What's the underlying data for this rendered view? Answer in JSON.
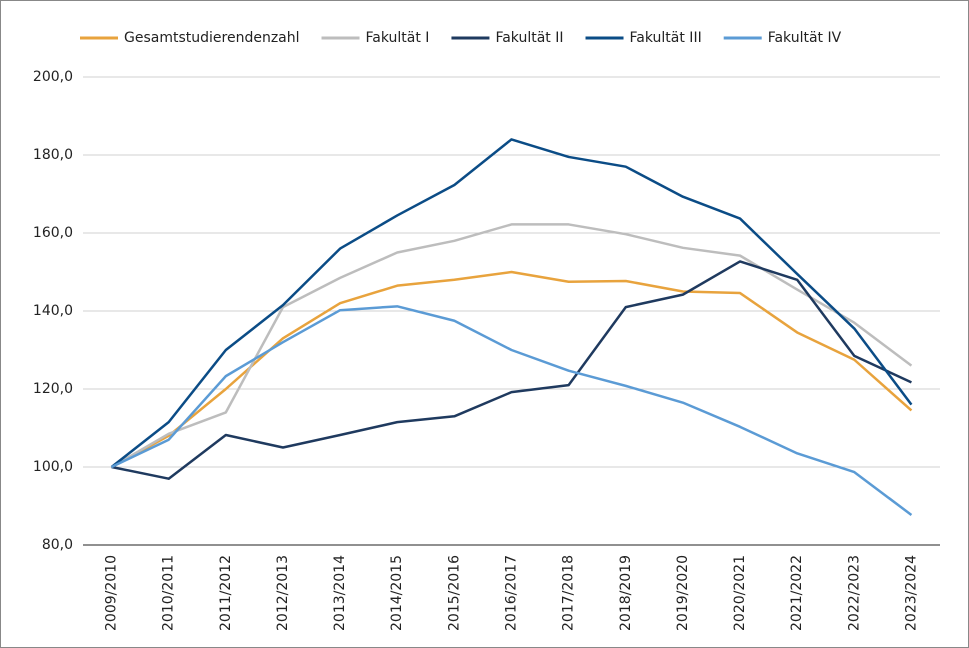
{
  "chart_data": {
    "type": "line",
    "categories": [
      "2009/2010",
      "2010/2011",
      "2011/2012",
      "2012/2013",
      "2013/2014",
      "2014/2015",
      "2015/2016",
      "2016/2017",
      "2017/2018",
      "2018/2019",
      "2019/2020",
      "2020/2021",
      "2021/2022",
      "2022/2023",
      "2023/2024"
    ],
    "series": [
      {
        "name": "Gesamtstudierendenzahl",
        "color": "#e8a33d",
        "values": [
          100,
          108,
          120,
          133,
          142,
          146.5,
          148,
          150,
          147.5,
          147.7,
          145,
          144.6,
          134.5,
          127.5,
          114.5
        ]
      },
      {
        "name": "Fakultät I",
        "color": "#bdbdbd",
        "values": [
          100,
          108.5,
          114,
          141,
          148.5,
          155,
          158,
          162.2,
          162.2,
          159.7,
          156.2,
          154.2,
          145.5,
          137,
          126
        ]
      },
      {
        "name": "Fakultät II",
        "color": "#1f3a5f",
        "values": [
          100,
          97,
          108.2,
          105,
          108.2,
          111.5,
          113,
          119.2,
          121,
          141,
          144.2,
          152.7,
          148,
          128.5,
          121.7
        ]
      },
      {
        "name": "Fakultät III",
        "color": "#0b4c86",
        "values": [
          100,
          111.5,
          130,
          141.5,
          156,
          164.5,
          172.3,
          184,
          179.5,
          177,
          169.3,
          163.7,
          149.5,
          135.5,
          116
        ]
      },
      {
        "name": "Fakultät IV",
        "color": "#5b9bd5",
        "values": [
          100,
          107,
          123.3,
          132,
          140.2,
          141.2,
          137.5,
          130,
          124.7,
          120.8,
          116.5,
          110.3,
          103.5,
          98.7,
          87.7
        ]
      }
    ],
    "ylim": [
      80,
      200
    ],
    "yticks": [
      {
        "value": 80,
        "label": "80,0"
      },
      {
        "value": 100,
        "label": "100,0"
      },
      {
        "value": 120,
        "label": "120,0"
      },
      {
        "value": 140,
        "label": "140,0"
      },
      {
        "value": 160,
        "label": "160,0"
      },
      {
        "value": 180,
        "label": "180,0"
      },
      {
        "value": 200,
        "label": "200,0"
      }
    ],
    "grid": true,
    "legend": "top"
  }
}
